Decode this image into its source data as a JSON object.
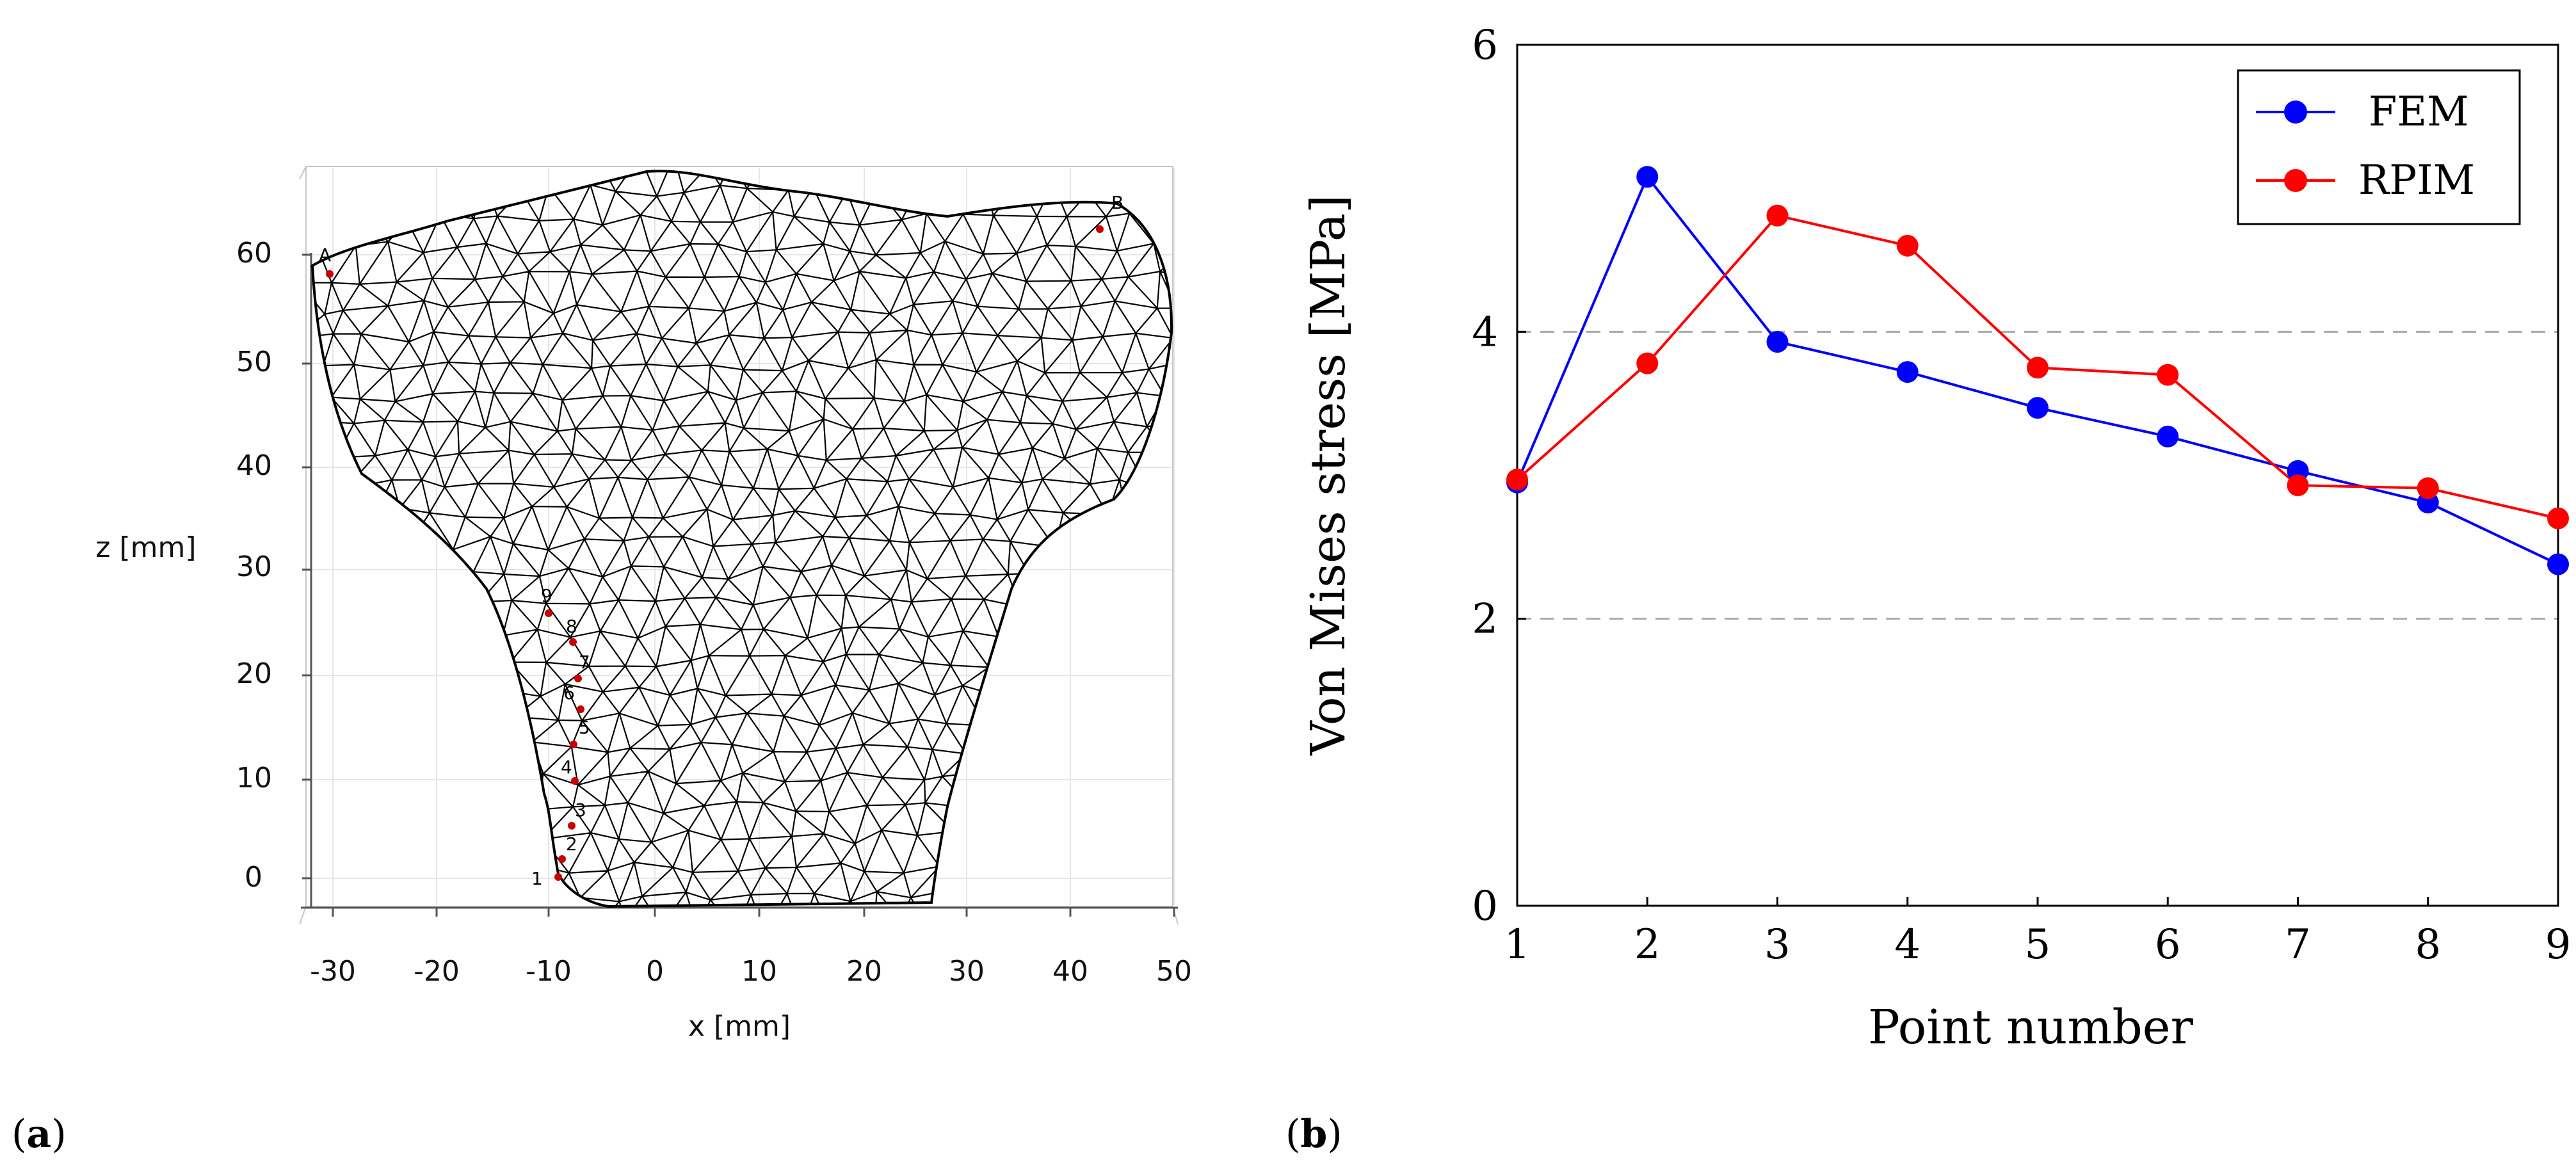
{
  "panel_a": {
    "label_open": "(",
    "label_letter": "a",
    "label_close": ")",
    "xlabel": "x [mm]",
    "ylabel": "z [mm]",
    "x_ticks": [
      "-30",
      "-20",
      "-10",
      "0",
      "10",
      "20",
      "30",
      "40",
      "50"
    ],
    "z_ticks": [
      "0",
      "10",
      "20",
      "30",
      "40",
      "50",
      "60"
    ],
    "point_A": "A",
    "point_B": "B",
    "numbered_points": [
      "1",
      "2",
      "3",
      "4",
      "5",
      "6",
      "7",
      "8",
      "9"
    ],
    "mesh_color": "#000000",
    "point_color": "#cc0000"
  },
  "panel_b": {
    "label_open": "(",
    "label_letter": "b",
    "label_close": ")"
  },
  "chart_data": {
    "type": "line",
    "title": "",
    "xlabel": "Point number",
    "ylabel": "Von Mises stress [MPa]",
    "x": [
      1,
      2,
      3,
      4,
      5,
      6,
      7,
      8,
      9
    ],
    "xlim": [
      1,
      9
    ],
    "ylim": [
      0,
      6
    ],
    "x_ticks": [
      "1",
      "2",
      "3",
      "4",
      "5",
      "6",
      "7",
      "8",
      "9"
    ],
    "y_ticks": [
      "0",
      "2",
      "4",
      "6"
    ],
    "grid": "horizontal dashed at 2 and 4",
    "legend_position": "top-right",
    "series": [
      {
        "name": "FEM",
        "color": "#0000ff",
        "values": [
          2.95,
          5.08,
          3.93,
          3.72,
          3.47,
          3.27,
          3.03,
          2.81,
          2.38
        ]
      },
      {
        "name": "RPIM",
        "color": "#ff0000",
        "values": [
          2.97,
          3.78,
          4.81,
          4.6,
          3.75,
          3.7,
          2.93,
          2.91,
          2.7
        ]
      }
    ]
  }
}
